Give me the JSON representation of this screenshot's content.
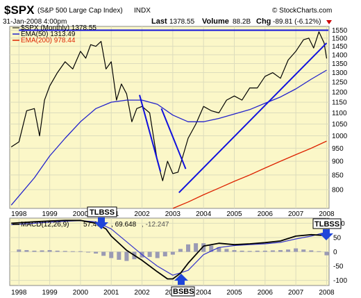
{
  "header": {
    "symbol": "$SPX",
    "name": "(S&P 500 Large Cap Index)",
    "exchange": "INDX",
    "date": "31-Jan-2008 4:00pm",
    "last_label": "Last",
    "last_value": "1378.55",
    "volume_label": "Volume",
    "volume_value": "88.2B",
    "chg_label": "Chg",
    "chg_value": "-89.81 (-6.12%)",
    "chg_icon": "down-triangle-icon",
    "credit": "© StockCharts.com"
  },
  "legend": {
    "price": "$SPX (Monthly) 1378.55",
    "ema50": "EMA(50) 1313.49",
    "ema200": "EMA(200) 978.44",
    "macd_name": "MACD(12,26,9)",
    "macd_v1": "57.401",
    "macd_v2": "69.648",
    "macd_v3": "-12.247"
  },
  "colors": {
    "background": "#fbf7c8",
    "grid": "#dcdcbc",
    "price": "#000000",
    "ema50": "#2222cc",
    "ema200": "#dd2200",
    "trendline": "#1111dd",
    "macd_line": "#000000",
    "signal_line": "#3333cc",
    "histogram": "#9a9ab4",
    "arrow": "#1f45d9",
    "down_triangle": "#cc0000"
  },
  "annotations": {
    "tlbss_1": "TLBSS",
    "tlbss_2": "TLBSS",
    "bsbs": "BSBS"
  },
  "chart_data": [
    {
      "type": "line",
      "title": "$SPX (S&P 500 Large Cap Index) INDX",
      "interval": "Monthly",
      "xlim": [
        1997.7,
        2008.08
      ],
      "ylim": [
        740,
        1575
      ],
      "log_scale": true,
      "grid": true,
      "legend": "top-left",
      "x_tick_labels": [
        "1998",
        "1999",
        "2000",
        "2001",
        "2002",
        "2003",
        "2004",
        "2005",
        "2006",
        "2007",
        "2008"
      ],
      "x_ticks": [
        1998,
        1999,
        2000,
        2001,
        2002,
        2003,
        2004,
        2005,
        2006,
        2007,
        2008
      ],
      "y_ticks": [
        800,
        850,
        900,
        950,
        1000,
        1050,
        1100,
        1150,
        1200,
        1250,
        1300,
        1350,
        1400,
        1450,
        1500,
        1550
      ],
      "series": [
        {
          "name": "$SPX",
          "x": [
            1997.75,
            1998.0,
            1998.25,
            1998.5,
            1998.67,
            1998.83,
            1999.0,
            1999.25,
            1999.5,
            1999.75,
            2000.0,
            2000.17,
            2000.33,
            2000.5,
            2000.67,
            2000.83,
            2001.0,
            2001.17,
            2001.33,
            2001.5,
            2001.67,
            2001.83,
            2002.0,
            2002.25,
            2002.5,
            2002.67,
            2002.83,
            2003.0,
            2003.17,
            2003.33,
            2003.5,
            2003.75,
            2004.0,
            2004.25,
            2004.5,
            2004.75,
            2005.0,
            2005.25,
            2005.5,
            2005.75,
            2006.0,
            2006.25,
            2006.5,
            2006.75,
            2007.0,
            2007.25,
            2007.42,
            2007.58,
            2007.75,
            2007.92,
            2008.0
          ],
          "values": [
            955,
            975,
            1110,
            1120,
            1000,
            1160,
            1230,
            1300,
            1360,
            1320,
            1420,
            1380,
            1460,
            1450,
            1480,
            1320,
            1360,
            1160,
            1240,
            1190,
            1060,
            1120,
            1130,
            1100,
            900,
            830,
            900,
            855,
            860,
            920,
            990,
            1050,
            1130,
            1110,
            1100,
            1160,
            1180,
            1160,
            1220,
            1220,
            1280,
            1300,
            1270,
            1370,
            1420,
            1490,
            1500,
            1440,
            1540,
            1470,
            1378.55
          ]
        },
        {
          "name": "EMA(50)",
          "x": [
            1997.75,
            1998.5,
            1999.0,
            1999.5,
            2000.0,
            2000.5,
            2001.0,
            2001.5,
            2002.0,
            2002.5,
            2003.0,
            2003.5,
            2004.0,
            2004.5,
            2005.0,
            2005.5,
            2006.0,
            2006.5,
            2007.0,
            2007.5,
            2008.0
          ],
          "values": [
            750,
            840,
            920,
            990,
            1060,
            1120,
            1150,
            1160,
            1160,
            1140,
            1090,
            1060,
            1060,
            1075,
            1095,
            1115,
            1145,
            1175,
            1215,
            1265,
            1313.49
          ]
        },
        {
          "name": "EMA(200)",
          "x": [
            2003.0,
            2003.5,
            2004.0,
            2004.5,
            2005.0,
            2005.5,
            2006.0,
            2006.5,
            2007.0,
            2007.5,
            2008.0
          ],
          "values": [
            740,
            760,
            783,
            805,
            828,
            850,
            875,
            900,
            925,
            950,
            978.44
          ]
        }
      ],
      "trendlines": [
        {
          "x": [
            2001.92,
            2002.6
          ],
          "values": [
            1185,
            862
          ]
        },
        {
          "x": [
            2002.63,
            2003.42
          ],
          "values": [
            1120,
            872
          ]
        },
        {
          "x": [
            2003.2,
            2008.0
          ],
          "values": [
            790,
            1470
          ]
        },
        {
          "x": [
            1998.0,
            2008.06
          ],
          "values": [
            1550,
            1550
          ]
        }
      ]
    },
    {
      "type": "line",
      "title": "MACD(12,26,9)",
      "xlim": [
        1997.7,
        2008.08
      ],
      "ylim": [
        -118,
        118
      ],
      "grid": true,
      "x_tick_labels": [
        "1998",
        "1999",
        "2000",
        "2001",
        "2002",
        "2003",
        "2004",
        "2005",
        "2006",
        "2007",
        "2008"
      ],
      "x_ticks": [
        1998,
        1999,
        2000,
        2001,
        2002,
        2003,
        2004,
        2005,
        2006,
        2007,
        2008
      ],
      "y_ticks": [
        -100,
        -50,
        0,
        50,
        100
      ],
      "series": [
        {
          "name": "MACD",
          "x": [
            1997.75,
            1998.5,
            1999.0,
            1999.5,
            2000.0,
            2000.5,
            2000.83,
            2001.0,
            2001.5,
            2002.0,
            2002.5,
            2002.83,
            2003.0,
            2003.25,
            2003.5,
            2004.0,
            2004.5,
            2005.0,
            2005.5,
            2006.0,
            2006.5,
            2007.0,
            2007.5,
            2007.83,
            2008.0
          ],
          "values": [
            100,
            105,
            108,
            110,
            110,
            100,
            80,
            55,
            5,
            -30,
            -70,
            -95,
            -95,
            -75,
            -40,
            20,
            30,
            25,
            28,
            32,
            38,
            55,
            60,
            58,
            57.401
          ]
        },
        {
          "name": "Signal",
          "x": [
            1997.75,
            1998.5,
            1999.0,
            1999.5,
            2000.0,
            2000.5,
            2001.0,
            2001.5,
            2002.0,
            2002.5,
            2003.0,
            2003.5,
            2004.0,
            2004.5,
            2005.0,
            2005.5,
            2006.0,
            2006.5,
            2007.0,
            2007.5,
            2008.0
          ],
          "values": [
            95,
            100,
            104,
            107,
            109,
            105,
            80,
            35,
            -10,
            -50,
            -82,
            -65,
            -10,
            15,
            22,
            25,
            28,
            33,
            45,
            55,
            69.648
          ]
        },
        {
          "name": "Histogram",
          "x": [
            1998.0,
            1998.25,
            1998.5,
            1998.75,
            1999.0,
            1999.25,
            1999.5,
            1999.75,
            2000.0,
            2000.25,
            2000.5,
            2000.75,
            2001.0,
            2001.25,
            2001.5,
            2001.75,
            2002.0,
            2002.25,
            2002.5,
            2002.75,
            2003.0,
            2003.25,
            2003.5,
            2003.75,
            2004.0,
            2004.25,
            2004.5,
            2004.75,
            2005.0,
            2005.25,
            2005.5,
            2005.75,
            2006.0,
            2006.25,
            2006.5,
            2006.75,
            2007.0,
            2007.25,
            2007.5,
            2007.75,
            2008.0
          ],
          "values": [
            8,
            6,
            4,
            5,
            6,
            4,
            3,
            2,
            2,
            -2,
            -6,
            -14,
            -22,
            -28,
            -32,
            -26,
            -20,
            -18,
            -22,
            -16,
            -10,
            10,
            26,
            30,
            30,
            22,
            16,
            10,
            6,
            4,
            3,
            4,
            4,
            5,
            6,
            8,
            12,
            8,
            5,
            2,
            -12.247
          ]
        }
      ]
    }
  ]
}
